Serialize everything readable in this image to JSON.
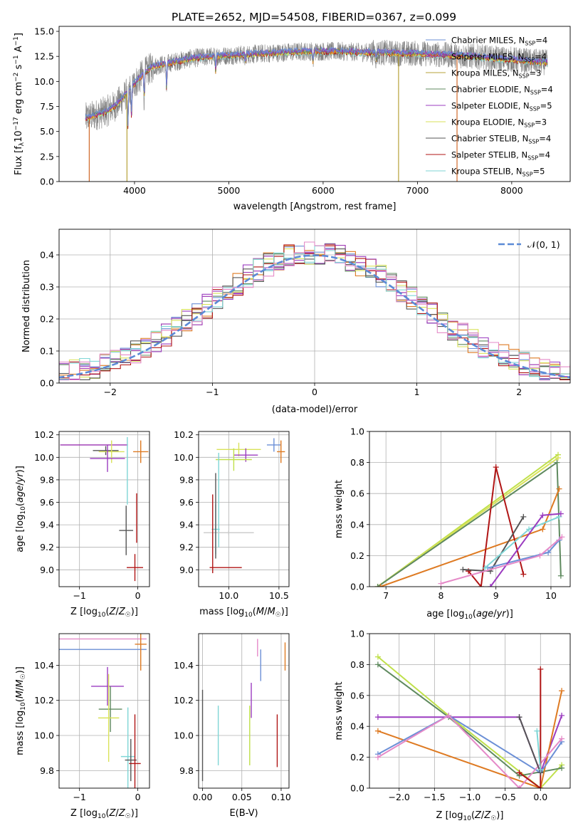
{
  "figure": {
    "title": "PLATE=2652, MJD=54508, FIBERID=0367, z=0.099",
    "legend": [
      {
        "label": "Chabrier MILES, N",
        "sub": "SSP",
        "tail": "=4",
        "color": "#6b8fd6"
      },
      {
        "label": "Salpeter MILES, N",
        "sub": "SSP",
        "tail": "=4",
        "color": "#9a30b0"
      },
      {
        "label": "Kroupa MILES, N",
        "sub": "SSP",
        "tail": "=3",
        "color": "#b7a23a"
      },
      {
        "label": "Chabrier ELODIE, N",
        "sub": "SSP",
        "tail": "=4",
        "color": "#5f8a5f"
      },
      {
        "label": "Salpeter ELODIE, N",
        "sub": "SSP",
        "tail": "=5",
        "color": "#9b3cc0"
      },
      {
        "label": "Kroupa ELODIE, N",
        "sub": "SSP",
        "tail": "=3",
        "color": "#d9e25a"
      },
      {
        "label": "Chabrier STELIB, N",
        "sub": "SSP",
        "tail": "=4",
        "color": "#555555"
      },
      {
        "label": "Salpeter STELIB, N",
        "sub": "SSP",
        "tail": "=4",
        "color": "#b01515"
      },
      {
        "label": "Kroupa STELIB, N",
        "sub": "SSP",
        "tail": "=5",
        "color": "#7fd6d6"
      }
    ],
    "gauss_legend": "𝒩(0, 1)",
    "colors": {
      "c1": "#6b8fd6",
      "c2": "#9a30b0",
      "c3": "#de7a22",
      "c4": "#5f8a5f",
      "c5": "#9b3cc0",
      "c6": "#d9e25a",
      "c7": "#555555",
      "c8": "#b01515",
      "c9": "#7fd6d6",
      "c10": "#e58ac8",
      "c11": "#bfe04a",
      "c12": "#c8c8c8"
    }
  },
  "chart_data": [
    {
      "type": "line",
      "panel": "spectrum",
      "xlabel": "wavelength [Angstrom, rest frame]",
      "ylabel": "Flux [f_λ 10^-17 erg cm^-2 s^-1 A^-1]",
      "xlim": [
        3200,
        8620
      ],
      "ylim": [
        0,
        15.5
      ],
      "xticks": [
        4000,
        5000,
        6000,
        7000,
        8000
      ],
      "yticks": [
        0.0,
        2.5,
        5.0,
        7.5,
        10.0,
        12.5,
        15.0
      ],
      "continuum_x": [
        3480,
        3600,
        3700,
        3800,
        3900,
        4000,
        4100,
        4200,
        4400,
        4600,
        4800,
        5000,
        5200,
        5400,
        5600,
        5800,
        6000,
        6200,
        6400,
        6600,
        6800,
        7000,
        7200,
        7400,
        7600,
        7800,
        8000,
        8200,
        8380
      ],
      "continuum_y": [
        6.3,
        6.7,
        7.0,
        7.6,
        8.6,
        9.8,
        10.8,
        11.5,
        11.9,
        12.3,
        12.5,
        12.6,
        12.7,
        12.8,
        12.9,
        13.0,
        13.0,
        13.0,
        12.9,
        12.9,
        12.8,
        12.8,
        12.7,
        12.6,
        12.5,
        12.3,
        12.2,
        12.0,
        11.9
      ],
      "gaps_x": [
        3520,
        3920,
        6800,
        7420
      ]
    },
    {
      "type": "histogram",
      "panel": "residuals",
      "xlabel": "(data-model)/error",
      "ylabel": "Normed distribution",
      "xlim": [
        -2.5,
        2.5
      ],
      "ylim": [
        0,
        0.48
      ],
      "xticks": [
        -2,
        -1,
        0,
        1,
        2
      ],
      "yticks": [
        0.0,
        0.1,
        0.2,
        0.3,
        0.4
      ],
      "bin_width": 0.1,
      "gaussian": {
        "mean": 0,
        "sigma": 1
      }
    },
    {
      "type": "scatter",
      "panel": "age-Z",
      "xlabel": "Z [log10(Z/Z⊙)]",
      "ylabel": "age [log10(age/yr)]",
      "xlim": [
        -1.35,
        0.2
      ],
      "ylim": [
        8.85,
        10.23
      ],
      "xticks": [
        -1,
        0
      ],
      "yticks": [
        9.0,
        9.2,
        9.4,
        9.6,
        9.8,
        10.0,
        10.2
      ],
      "points": [
        {
          "x": -0.75,
          "y": 10.11,
          "xerr": 0.58,
          "yerr": 0.0,
          "c": "c2"
        },
        {
          "x": 0.05,
          "y": 10.05,
          "xerr": 0.13,
          "yerr": 0.1,
          "c": "c3"
        },
        {
          "x": -0.55,
          "y": 10.06,
          "xerr": 0.22,
          "yerr": 0.04,
          "c": "c7"
        },
        {
          "x": -0.45,
          "y": 10.05,
          "xerr": 0.22,
          "yerr": 0.1,
          "c": "c6"
        },
        {
          "x": -0.52,
          "y": 9.99,
          "xerr": 0.3,
          "yerr": 0.12,
          "c": "c5"
        },
        {
          "x": -0.18,
          "y": 9.88,
          "xerr": 0.0,
          "yerr": 0.3,
          "c": "c9"
        },
        {
          "x": -0.2,
          "y": 9.35,
          "xerr": 0.12,
          "yerr": 0.22,
          "c": "c7"
        },
        {
          "x": -0.05,
          "y": 9.02,
          "xerr": 0.14,
          "yerr": 0.12,
          "c": "c8"
        },
        {
          "x": -0.02,
          "y": 9.46,
          "xerr": 0.0,
          "yerr": 0.22,
          "c": "c8"
        }
      ]
    },
    {
      "type": "scatter",
      "panel": "age-mass",
      "xlabel": "mass [log10(M/M⊙)]",
      "ylabel": "",
      "xlim": [
        9.7,
        10.6
      ],
      "ylim": [
        8.85,
        10.23
      ],
      "xticks": [
        10.0,
        10.5
      ],
      "yticks": [
        9.0,
        9.2,
        9.4,
        9.6,
        9.8,
        10.0,
        10.2
      ],
      "points": [
        {
          "x": 10.1,
          "y": 10.07,
          "xerr": 0.22,
          "yerr": 0.06,
          "c": "c6"
        },
        {
          "x": 10.45,
          "y": 10.11,
          "xerr": 0.07,
          "yerr": 0.06,
          "c": "c1"
        },
        {
          "x": 10.52,
          "y": 10.05,
          "xerr": 0.04,
          "yerr": 0.1,
          "c": "c3"
        },
        {
          "x": 10.17,
          "y": 10.02,
          "xerr": 0.12,
          "yerr": 0.06,
          "c": "c5"
        },
        {
          "x": 10.05,
          "y": 9.98,
          "xerr": 0.18,
          "yerr": 0.1,
          "c": "c11"
        },
        {
          "x": 9.9,
          "y": 9.62,
          "xerr": 0.0,
          "yerr": 0.42,
          "c": "c9"
        },
        {
          "x": 10.0,
          "y": 9.33,
          "xerr": 0.25,
          "yerr": 0.02,
          "c": "c12"
        },
        {
          "x": 9.87,
          "y": 9.36,
          "xerr": 0.04,
          "yerr": 0.22,
          "c": "c9"
        },
        {
          "x": 9.87,
          "y": 9.48,
          "xerr": 0.0,
          "yerr": 0.38,
          "c": "c7"
        },
        {
          "x": 9.97,
          "y": 9.02,
          "xerr": 0.16,
          "yerr": 0.0,
          "c": "c8"
        },
        {
          "x": 9.84,
          "y": 9.32,
          "xerr": 0.0,
          "yerr": 0.35,
          "c": "c8"
        }
      ]
    },
    {
      "type": "line",
      "panel": "weight-age",
      "xlabel": "age [log10(age/yr)]",
      "ylabel": "mass weight",
      "xlim": [
        6.7,
        10.35
      ],
      "ylim": [
        0,
        1.0
      ],
      "xticks": [
        7,
        8,
        9,
        10
      ],
      "yticks": [
        0.0,
        0.2,
        0.4,
        0.6,
        0.8,
        1.0
      ],
      "series": [
        {
          "c": "c11",
          "x": [
            6.85,
            10.13
          ],
          "y": [
            0.0,
            0.85
          ]
        },
        {
          "c": "c6",
          "x": [
            6.85,
            10.13
          ],
          "y": [
            0.0,
            0.83
          ]
        },
        {
          "c": "c4",
          "x": [
            6.85,
            10.11,
            10.18
          ],
          "y": [
            0.0,
            0.8,
            0.07
          ]
        },
        {
          "c": "c3",
          "x": [
            6.9,
            9.85,
            10.15
          ],
          "y": [
            0.0,
            0.37,
            0.63
          ]
        },
        {
          "c": "c8",
          "x": [
            8.5,
            8.73,
            9.0,
            9.5
          ],
          "y": [
            0.1,
            0.0,
            0.77,
            0.08
          ]
        },
        {
          "c": "c7",
          "x": [
            8.4,
            8.9,
            9.5
          ],
          "y": [
            0.11,
            0.1,
            0.45
          ]
        },
        {
          "c": "c1",
          "x": [
            8.85,
            9.95,
            10.15
          ],
          "y": [
            0.12,
            0.22,
            0.3
          ]
        },
        {
          "c": "c9",
          "x": [
            8.8,
            9.6,
            10.15
          ],
          "y": [
            0.12,
            0.37,
            0.45
          ]
        },
        {
          "c": "c5",
          "x": [
            8.9,
            9.85,
            10.18
          ],
          "y": [
            0.0,
            0.46,
            0.47
          ]
        },
        {
          "c": "c10",
          "x": [
            8.0,
            9.8,
            10.2
          ],
          "y": [
            0.02,
            0.2,
            0.32
          ]
        }
      ]
    },
    {
      "type": "scatter",
      "panel": "mass-Z",
      "xlabel": "Z [log10(Z/Z⊙)]",
      "ylabel": "mass [log10(M/M⊙)]",
      "xlim": [
        -1.35,
        0.2
      ],
      "ylim": [
        9.7,
        10.58
      ],
      "xticks": [
        -1,
        0
      ],
      "yticks": [
        9.8,
        10.0,
        10.2,
        10.4
      ],
      "points": [
        {
          "x": -0.6,
          "y": 10.55,
          "xerr": 0.75,
          "yerr": 0.0,
          "c": "c10"
        },
        {
          "x": -0.6,
          "y": 10.49,
          "xerr": 0.75,
          "yerr": 0.0,
          "c": "c1"
        },
        {
          "x": 0.05,
          "y": 10.52,
          "xerr": 0.1,
          "yerr": 0.15,
          "c": "c3"
        },
        {
          "x": -0.52,
          "y": 10.28,
          "xerr": 0.28,
          "yerr": 0.11,
          "c": "c5"
        },
        {
          "x": -0.47,
          "y": 10.15,
          "xerr": 0.2,
          "yerr": 0.13,
          "c": "c4"
        },
        {
          "x": -0.5,
          "y": 10.1,
          "xerr": 0.18,
          "yerr": 0.25,
          "c": "c6"
        },
        {
          "x": -0.17,
          "y": 9.88,
          "xerr": 0.12,
          "yerr": 0.28,
          "c": "c9"
        },
        {
          "x": -0.12,
          "y": 9.86,
          "xerr": 0.1,
          "yerr": 0.12,
          "c": "c7"
        },
        {
          "x": -0.05,
          "y": 9.84,
          "xerr": 0.1,
          "yerr": 0.28,
          "c": "c8"
        }
      ]
    },
    {
      "type": "scatter",
      "panel": "mass-EBV",
      "xlabel": "E(B-V)",
      "ylabel": "",
      "xlim": [
        -0.005,
        0.11
      ],
      "ylim": [
        9.7,
        10.58
      ],
      "xticks": [
        0.0,
        0.05,
        0.1
      ],
      "yticks": [
        9.8,
        10.0,
        10.2,
        10.4
      ],
      "points": [
        {
          "x": 0.0,
          "y": 10.0,
          "xerr": 0.0,
          "yerr": 0.26,
          "c": "c7"
        },
        {
          "x": 0.02,
          "y": 10.0,
          "xerr": 0.0,
          "yerr": 0.17,
          "c": "c9"
        },
        {
          "x": 0.06,
          "y": 10.0,
          "xerr": 0.0,
          "yerr": 0.17,
          "c": "c11"
        },
        {
          "x": 0.062,
          "y": 10.2,
          "xerr": 0.0,
          "yerr": 0.1,
          "c": "c5"
        },
        {
          "x": 0.07,
          "y": 10.5,
          "xerr": 0.0,
          "yerr": 0.05,
          "c": "c10"
        },
        {
          "x": 0.074,
          "y": 10.4,
          "xerr": 0.0,
          "yerr": 0.09,
          "c": "c1"
        },
        {
          "x": 0.095,
          "y": 9.97,
          "xerr": 0.0,
          "yerr": 0.15,
          "c": "c8"
        },
        {
          "x": 0.105,
          "y": 10.45,
          "xerr": 0.0,
          "yerr": 0.08,
          "c": "c3"
        }
      ]
    },
    {
      "type": "line",
      "panel": "weight-Z",
      "xlabel": "Z [log10(Z/Z⊙)]",
      "ylabel": "mass weight",
      "xlim": [
        -2.42,
        0.42
      ],
      "ylim": [
        0,
        1.0
      ],
      "xticks": [
        -2.0,
        -1.5,
        -1.0,
        -0.5,
        0.0
      ],
      "yticks": [
        0.0,
        0.2,
        0.4,
        0.6,
        0.8,
        1.0
      ],
      "series": [
        {
          "c": "c11",
          "x": [
            -2.3,
            -1.3,
            0.0,
            0.3
          ],
          "y": [
            0.85,
            0.47,
            0.0,
            0.15
          ]
        },
        {
          "c": "c4",
          "x": [
            -2.3,
            -1.3,
            -0.3,
            0.3
          ],
          "y": [
            0.8,
            0.46,
            0.08,
            0.13
          ]
        },
        {
          "c": "c5",
          "x": [
            -2.3,
            -0.3,
            0.0,
            0.3
          ],
          "y": [
            0.46,
            0.46,
            0.1,
            0.47
          ]
        },
        {
          "c": "c3",
          "x": [
            -2.3,
            0.0,
            0.3
          ],
          "y": [
            0.37,
            0.0,
            0.63
          ]
        },
        {
          "c": "c1",
          "x": [
            -2.3,
            -1.3,
            0.0,
            0.3
          ],
          "y": [
            0.22,
            0.47,
            0.1,
            0.3
          ]
        },
        {
          "c": "c10",
          "x": [
            -2.3,
            -1.3,
            -0.3,
            0.3
          ],
          "y": [
            0.2,
            0.47,
            0.0,
            0.32
          ]
        },
        {
          "c": "c8",
          "x": [
            -0.3,
            0.0,
            0.0
          ],
          "y": [
            0.1,
            0.0,
            0.77
          ]
        },
        {
          "c": "c7",
          "x": [
            -0.3,
            0.0
          ],
          "y": [
            0.46,
            0.1
          ]
        },
        {
          "c": "c9",
          "x": [
            -0.05,
            0.0
          ],
          "y": [
            0.37,
            0.12
          ]
        }
      ]
    }
  ]
}
